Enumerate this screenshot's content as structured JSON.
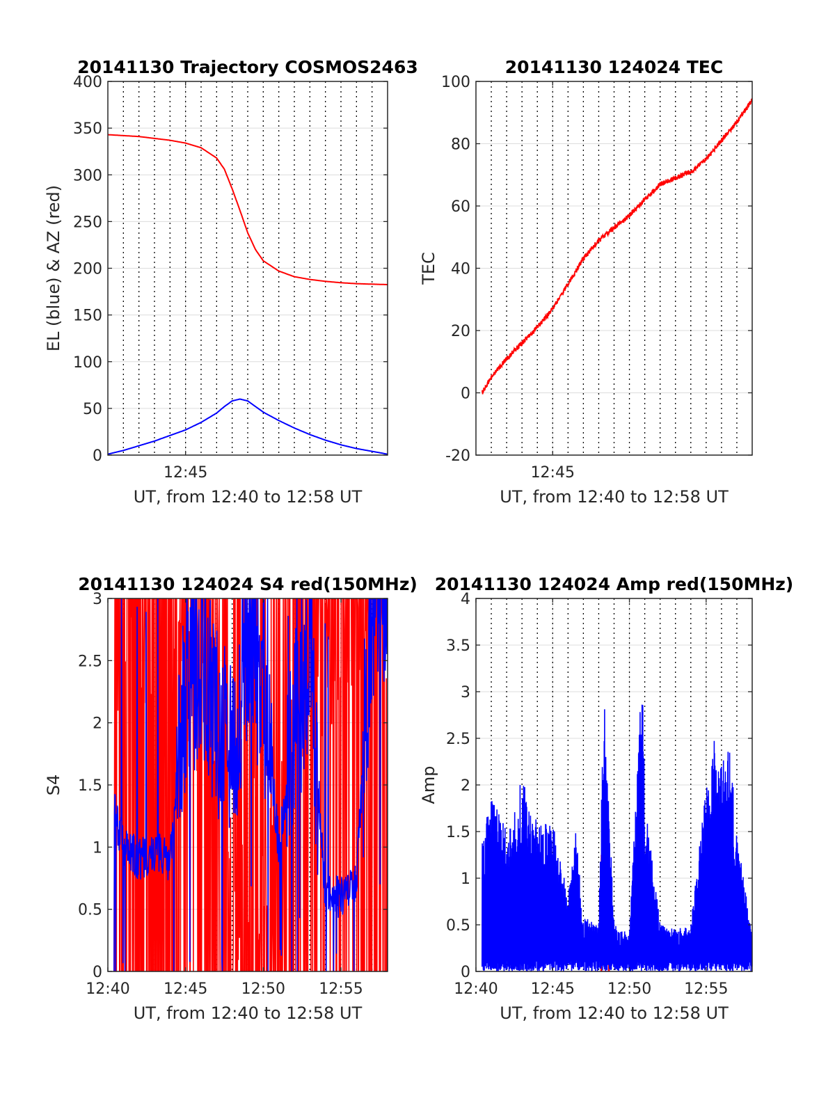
{
  "chart_data": [
    {
      "id": "traj",
      "type": "line",
      "title": "20141130 Trajectory COSMOS2463",
      "xlabel": "UT, from 12:40 to 12:58 UT",
      "ylabel": "EL (blue) & AZ (red)",
      "xlim": [
        "12:40",
        "12:58"
      ],
      "ylim": [
        0,
        400
      ],
      "yticks": [
        "0",
        "50",
        "100",
        "150",
        "200",
        "250",
        "300",
        "350",
        "400"
      ],
      "xticks": [
        {
          "x": "12:45",
          "label": "12:45"
        }
      ],
      "grid": true,
      "series": [
        {
          "color": "#ff0000",
          "x": [
            "12:40",
            "12:41",
            "12:42",
            "12:43",
            "12:44",
            "12:45",
            "12:46",
            "12:47",
            "12:47:30",
            "12:48",
            "12:48:30",
            "12:49",
            "12:49:30",
            "12:50",
            "12:51",
            "12:52",
            "12:53",
            "12:54",
            "12:55",
            "12:56",
            "12:57",
            "12:58"
          ],
          "values": [
            343,
            342,
            341,
            339,
            337,
            334,
            329,
            318,
            306,
            285,
            262,
            238,
            220,
            208,
            197,
            191,
            188,
            186,
            184.5,
            183.5,
            183,
            182.5
          ]
        },
        {
          "color": "#0000ff",
          "x": [
            "12:40",
            "12:41",
            "12:42",
            "12:43",
            "12:44",
            "12:45",
            "12:46",
            "12:47",
            "12:47:30",
            "12:48",
            "12:48:30",
            "12:49",
            "12:49:30",
            "12:50",
            "12:51",
            "12:52",
            "12:53",
            "12:54",
            "12:55",
            "12:56",
            "12:57",
            "12:58"
          ],
          "values": [
            1,
            5,
            10,
            15,
            21,
            27,
            35,
            45,
            52,
            58,
            60,
            58,
            52,
            46,
            37,
            29,
            22,
            16,
            11,
            7,
            4,
            1
          ]
        }
      ]
    },
    {
      "id": "tec",
      "type": "line",
      "title": "20141130 124024 TEC",
      "xlabel": "UT, from 12:40 to 12:58 UT",
      "ylabel": "TEC",
      "xlim": [
        "12:40",
        "12:58"
      ],
      "ylim": [
        -20,
        100
      ],
      "yticks": [
        "-20",
        "0",
        "20",
        "40",
        "60",
        "80",
        "100"
      ],
      "xticks": [
        {
          "x": "12:45",
          "label": "12:45"
        }
      ],
      "grid": true,
      "series": [
        {
          "color": "#ff0000",
          "x": [
            "12:40:24",
            "12:41",
            "12:42",
            "12:43",
            "12:44",
            "12:45",
            "12:46",
            "12:47",
            "12:48",
            "12:49",
            "12:50",
            "12:51",
            "12:52",
            "12:53",
            "12:54",
            "12:55",
            "12:56",
            "12:57",
            "12:58"
          ],
          "values": [
            0,
            5,
            11,
            16,
            21,
            27,
            35,
            43,
            49,
            53,
            57,
            62,
            67,
            69,
            71,
            75,
            81,
            87,
            94
          ]
        }
      ]
    },
    {
      "id": "s4",
      "type": "line",
      "title": "20141130 124024 S4 red(150MHz)",
      "xlabel": "UT, from 12:40 to 12:58 UT",
      "ylabel": "S4",
      "xlim": [
        "12:40",
        "12:58"
      ],
      "ylim": [
        0,
        3
      ],
      "yticks": [
        "0",
        "0.5",
        "1",
        "1.5",
        "2",
        "2.5",
        "3"
      ],
      "xticks": [
        {
          "x": "12:40",
          "label": "12:40"
        },
        {
          "x": "12:45",
          "label": "12:45"
        },
        {
          "x": "12:50",
          "label": "12:50"
        },
        {
          "x": "12:55",
          "label": "12:55"
        }
      ],
      "grid": true,
      "series": [
        {
          "color": "#ff0000",
          "note": "saturated noise, frequently clipped at 3",
          "x": [
            "12:40:24",
            "12:41",
            "12:42",
            "12:43",
            "12:44",
            "12:45",
            "12:46",
            "12:47",
            "12:48",
            "12:49",
            "12:50",
            "12:51",
            "12:52",
            "12:53",
            "12:54",
            "12:55",
            "12:56",
            "12:57",
            "12:58"
          ],
          "values": [
            2.2,
            3,
            3,
            3,
            3,
            3,
            2.5,
            2.2,
            1.2,
            0.5,
            0.4,
            0.3,
            3,
            2.6,
            3,
            3,
            3,
            3,
            3
          ]
        },
        {
          "color": "#0000ff",
          "x": [
            "12:40:24",
            "12:41",
            "12:42",
            "12:43",
            "12:44",
            "12:45",
            "12:46",
            "12:47",
            "12:48",
            "12:49",
            "12:50",
            "12:51",
            "12:52",
            "12:53",
            "12:54",
            "12:55",
            "12:56",
            "12:57",
            "12:58"
          ],
          "values": [
            1.3,
            1.0,
            0.9,
            0.95,
            0.9,
            2.3,
            2.5,
            2.0,
            1.8,
            2.6,
            2.3,
            1.0,
            2.0,
            2.5,
            0.6,
            0.6,
            0.7,
            3,
            3
          ]
        }
      ]
    },
    {
      "id": "amp",
      "type": "line",
      "title": "20141130 124024 Amp red(150MHz)",
      "xlabel": "UT, from 12:40 to 12:58 UT",
      "ylabel": "Amp",
      "xlim": [
        "12:40",
        "12:58"
      ],
      "ylim": [
        0,
        4
      ],
      "yticks": [
        "0",
        "0.5",
        "1",
        "1.5",
        "2",
        "2.5",
        "3",
        "3.5",
        "4"
      ],
      "xticks": [
        {
          "x": "12:40",
          "label": "12:40"
        },
        {
          "x": "12:45",
          "label": "12:45"
        },
        {
          "x": "12:50",
          "label": "12:50"
        },
        {
          "x": "12:55",
          "label": "12:55"
        }
      ],
      "grid": true,
      "series": [
        {
          "color": "#ff0000",
          "x": [
            "12:48:10",
            "12:48:40"
          ],
          "values": [
            1.25,
            1.3
          ]
        },
        {
          "color": "#0000ff",
          "x": [
            "12:40:24",
            "12:41",
            "12:42",
            "12:43",
            "12:44",
            "12:45",
            "12:46",
            "12:46:30",
            "12:47",
            "12:48",
            "12:48:20",
            "12:49",
            "12:50",
            "12:50:50",
            "12:51",
            "12:52",
            "12:53",
            "12:54",
            "12:55",
            "12:55:30",
            "12:56",
            "12:56:30",
            "12:57",
            "12:58"
          ],
          "values": [
            1.5,
            1.9,
            1.5,
            2.1,
            1.6,
            1.6,
            0.8,
            1.5,
            0.6,
            0.5,
            3.1,
            0.5,
            0.4,
            3.3,
            1.9,
            0.5,
            0.45,
            0.5,
            2.0,
            2.5,
            2.2,
            2.5,
            1.5,
            0.4
          ]
        }
      ]
    }
  ]
}
